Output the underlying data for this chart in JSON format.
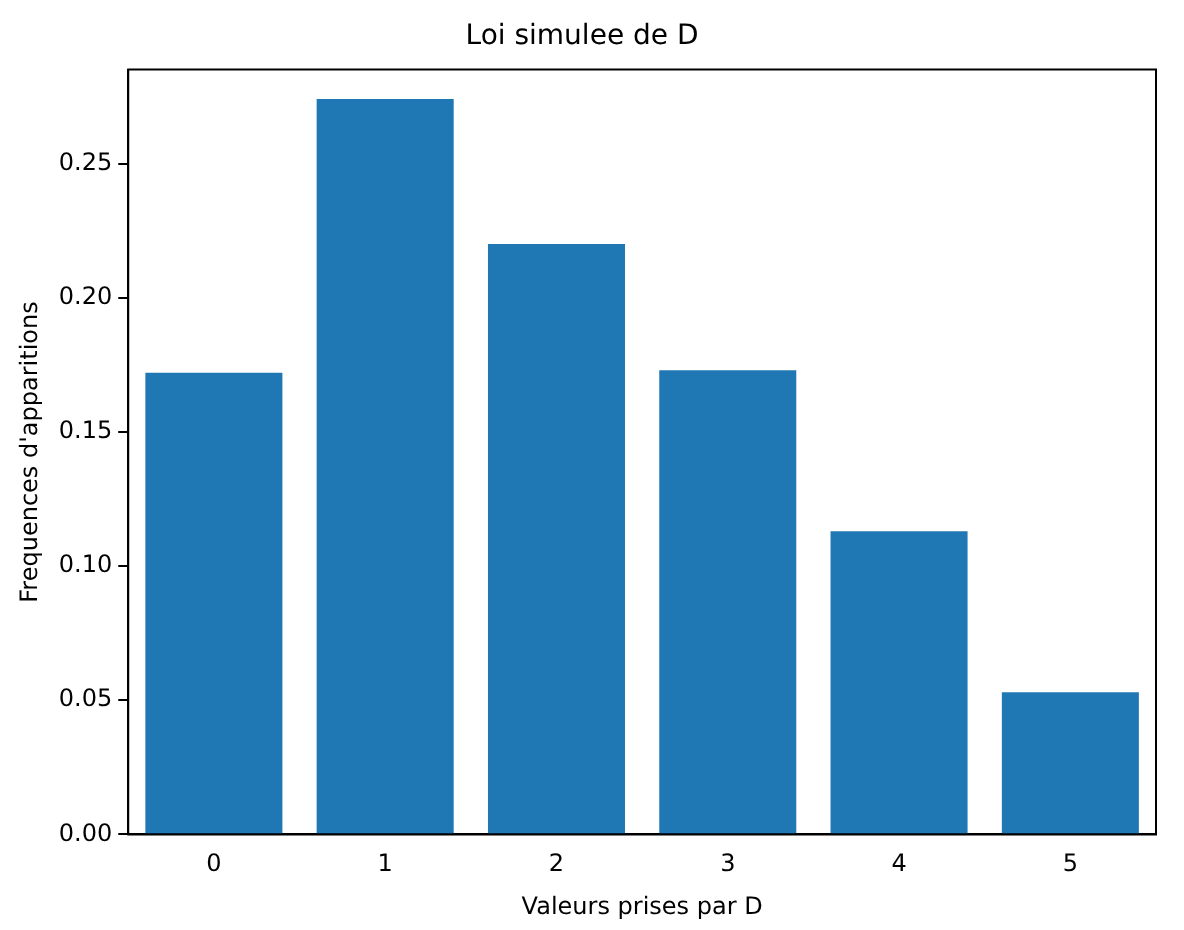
{
  "chart_data": {
    "type": "bar",
    "title": "Loi simulee de D",
    "xlabel": "Valeurs prises par D",
    "ylabel": "Frequences d'apparitions",
    "categories": [
      "0",
      "1",
      "2",
      "3",
      "4",
      "5"
    ],
    "values": [
      0.172,
      0.274,
      0.22,
      0.173,
      0.113,
      0.053
    ],
    "color": "#1f77b4",
    "ylim": [
      0,
      0.285
    ],
    "yticks": [
      {
        "value": 0,
        "label": "0.00"
      },
      {
        "value": 0.05,
        "label": "0.05"
      },
      {
        "value": 0.1,
        "label": "0.10"
      },
      {
        "value": 0.15,
        "label": "0.15"
      },
      {
        "value": 0.2,
        "label": "0.20"
      },
      {
        "value": 0.25,
        "label": "0.25"
      }
    ],
    "grid": false,
    "legend": false
  }
}
